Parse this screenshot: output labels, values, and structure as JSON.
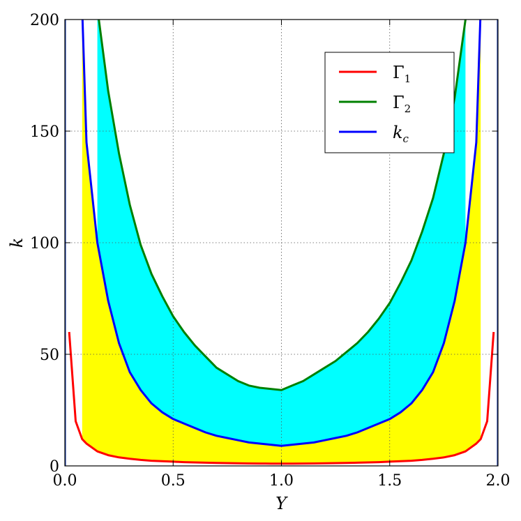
{
  "chart_data": {
    "type": "area",
    "title": "",
    "xlabel": "Y",
    "ylabel": "k",
    "xlim": [
      0.0,
      2.0
    ],
    "ylim": [
      0,
      200
    ],
    "xticks": [
      "0.0",
      "0.5",
      "1.0",
      "1.5",
      "2.0"
    ],
    "yticks": [
      "0",
      "50",
      "100",
      "150",
      "200"
    ],
    "grid": true,
    "legend_position": "top-right",
    "x": [
      0.02,
      0.05,
      0.08,
      0.1,
      0.15,
      0.2,
      0.25,
      0.3,
      0.35,
      0.4,
      0.45,
      0.5,
      0.55,
      0.6,
      0.65,
      0.7,
      0.75,
      0.8,
      0.85,
      0.9,
      0.95,
      1.0,
      1.05,
      1.1,
      1.15,
      1.2,
      1.25,
      1.3,
      1.35,
      1.4,
      1.45,
      1.5,
      1.55,
      1.6,
      1.65,
      1.7,
      1.75,
      1.8,
      1.85,
      1.9,
      1.92,
      1.95,
      1.98
    ],
    "series": [
      {
        "name": "Γ",
        "subscript": "1",
        "color": "#ff0000",
        "values": [
          60,
          20,
          12,
          10,
          6.5,
          4.8,
          3.8,
          3.2,
          2.7,
          2.3,
          2.1,
          1.9,
          1.7,
          1.55,
          1.45,
          1.35,
          1.25,
          1.15,
          1.1,
          1.05,
          1.02,
          1.0,
          1.02,
          1.05,
          1.1,
          1.15,
          1.25,
          1.35,
          1.45,
          1.55,
          1.7,
          1.9,
          2.1,
          2.3,
          2.7,
          3.2,
          3.8,
          4.8,
          6.5,
          10,
          12,
          20,
          60
        ]
      },
      {
        "name": "Γ",
        "subscript": "2",
        "color": "#008000",
        "values": [
          null,
          null,
          null,
          null,
          205,
          168,
          140,
          117,
          99,
          86,
          76,
          67,
          60,
          54,
          49,
          44,
          41,
          38,
          36,
          35,
          34.5,
          34,
          36,
          38,
          41,
          44,
          47,
          51,
          55,
          60,
          66,
          73,
          82,
          92,
          105,
          120,
          140,
          165,
          200,
          null,
          null,
          null,
          null
        ]
      },
      {
        "name": "k",
        "subscript": "c",
        "color": "#0000ff",
        "values": [
          null,
          null,
          205,
          145,
          100,
          74,
          55,
          42,
          34,
          28,
          24,
          21,
          19,
          17,
          15,
          13.5,
          12.5,
          11.5,
          10.5,
          10,
          9.5,
          9,
          9.5,
          10,
          10.5,
          11.5,
          12.5,
          13.5,
          15,
          17,
          19,
          21,
          24,
          28,
          34,
          42,
          55,
          74,
          100,
          145,
          205,
          null,
          null
        ]
      }
    ],
    "fills": [
      {
        "between": [
          "Γ1",
          "kc"
        ],
        "color": "#ffff00"
      },
      {
        "between": [
          "kc",
          "Γ2"
        ],
        "color": "#00ffff"
      }
    ]
  }
}
